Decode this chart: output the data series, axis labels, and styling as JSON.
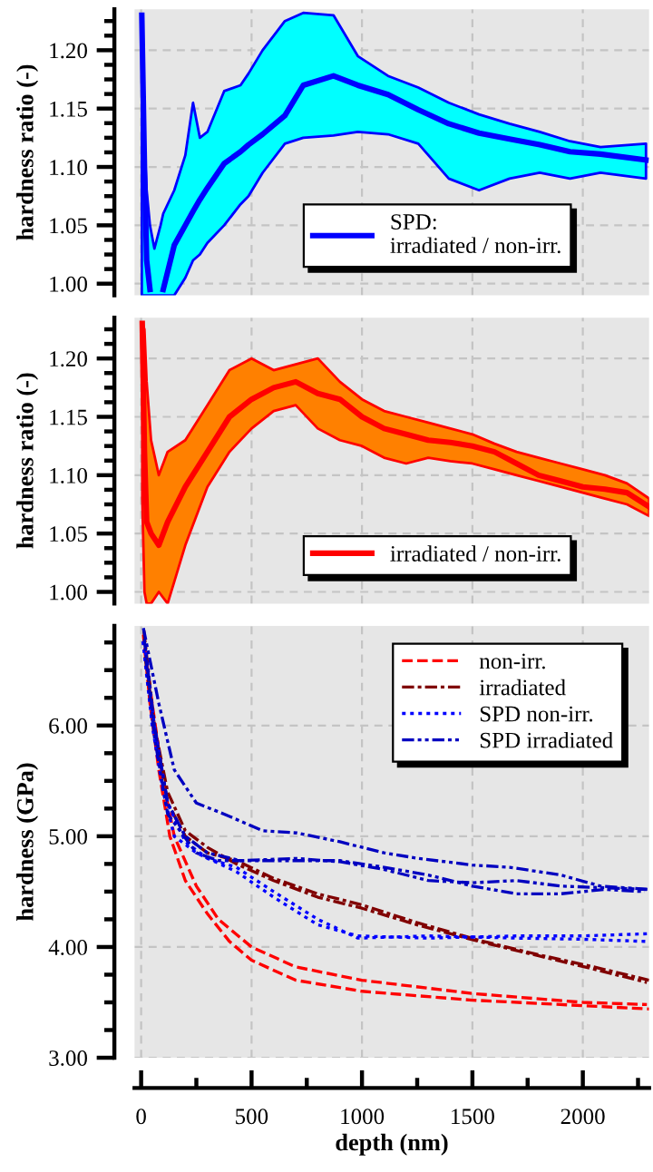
{
  "chart_data": [
    {
      "type": "line",
      "ylabel": "hardness ratio (-)",
      "xlim": [
        -30,
        2300
      ],
      "xticks": [
        0,
        500,
        1000,
        1500,
        2000
      ],
      "ylim": [
        0.99,
        1.235
      ],
      "yticks": [
        {
          "value": 1.0,
          "label": "1.00"
        },
        {
          "value": 1.05,
          "label": "1.05"
        },
        {
          "value": 1.1,
          "label": "1.10"
        },
        {
          "value": 1.15,
          "label": "1.15"
        },
        {
          "value": 1.2,
          "label": "1.20"
        }
      ],
      "tick_labels": "y",
      "grid": true,
      "legend": "bottom right",
      "series": [
        {
          "name": "SPD:\nirradiated / non-irr.",
          "color": "#0000ff",
          "x": [
            3,
            15,
            25,
            40,
            60,
            88,
            100,
            150,
            200,
            235,
            266,
            300,
            376,
            450,
            486,
            550,
            651,
            734,
            871,
            981,
            1118,
            1255,
            1393,
            1530,
            1668,
            1805,
            1942,
            2080,
            2286
          ],
          "values": [
            1.23,
            1.1,
            1.02,
            0.995,
            null,
            null,
            0.995,
            1.033,
            1.05,
            1.062,
            1.072,
            1.082,
            1.103,
            1.113,
            1.119,
            1.128,
            1.144,
            1.17,
            1.178,
            1.17,
            1.162,
            1.149,
            1.137,
            1.129,
            1.124,
            1.119,
            1.113,
            1.111,
            1.106
          ],
          "upper": [
            1.23,
            1.12,
            1.08,
            1.05,
            1.03,
            1.05,
            1.06,
            1.08,
            1.11,
            1.155,
            1.125,
            1.13,
            1.165,
            1.17,
            1.18,
            1.2,
            1.225,
            1.232,
            1.23,
            1.195,
            1.178,
            1.168,
            1.155,
            1.145,
            1.137,
            1.13,
            1.122,
            1.117,
            1.12
          ],
          "lower": [
            0.99,
            0.99,
            0.99,
            0.99,
            0.99,
            0.99,
            0.99,
            0.99,
            1.005,
            1.02,
            1.025,
            1.035,
            1.05,
            1.068,
            1.075,
            1.095,
            1.12,
            1.125,
            1.127,
            1.13,
            1.128,
            1.12,
            1.09,
            1.08,
            1.09,
            1.095,
            1.09,
            1.095,
            1.09
          ]
        }
      ]
    },
    {
      "type": "line",
      "ylabel": "hardness ratio (-)",
      "xlim": [
        -30,
        2300
      ],
      "xticks": [
        0,
        500,
        1000,
        1500,
        2000
      ],
      "ylim": [
        0.99,
        1.235
      ],
      "yticks": [
        {
          "value": 1.0,
          "label": "1.00"
        },
        {
          "value": 1.05,
          "label": "1.05"
        },
        {
          "value": 1.1,
          "label": "1.10"
        },
        {
          "value": 1.15,
          "label": "1.15"
        },
        {
          "value": 1.2,
          "label": "1.20"
        }
      ],
      "tick_labels": "y",
      "grid": true,
      "legend": "bottom right",
      "series": [
        {
          "name": "irradiated / non-irr.",
          "color": "#ff0000",
          "x": [
            5,
            15,
            25,
            45,
            80,
            120,
            200,
            300,
            400,
            500,
            600,
            700,
            800,
            900,
            1000,
            1100,
            1200,
            1300,
            1400,
            1500,
            1600,
            1700,
            1800,
            1900,
            2000,
            2100,
            2200,
            2300
          ],
          "values": [
            1.23,
            1.12,
            1.06,
            1.05,
            1.04,
            1.06,
            1.09,
            1.12,
            1.15,
            1.165,
            1.175,
            1.18,
            1.17,
            1.165,
            1.15,
            1.14,
            1.135,
            1.13,
            1.128,
            1.125,
            1.12,
            1.11,
            1.1,
            1.095,
            1.09,
            1.088,
            1.085,
            1.073
          ],
          "upper": [
            1.23,
            1.225,
            1.18,
            1.13,
            1.1,
            1.12,
            1.13,
            1.16,
            1.19,
            1.2,
            1.19,
            1.195,
            1.2,
            1.18,
            1.165,
            1.155,
            1.15,
            1.145,
            1.14,
            1.135,
            1.127,
            1.12,
            1.115,
            1.11,
            1.105,
            1.1,
            1.093,
            1.08
          ],
          "lower": [
            1.08,
            1.0,
            0.99,
            0.99,
            1.0,
            0.99,
            1.04,
            1.09,
            1.12,
            1.14,
            1.155,
            1.16,
            1.14,
            1.13,
            1.125,
            1.115,
            1.11,
            1.115,
            1.112,
            1.11,
            1.105,
            1.1,
            1.095,
            1.09,
            1.085,
            1.08,
            1.075,
            1.065
          ]
        }
      ]
    },
    {
      "type": "line",
      "ylabel": "hardness (GPa)",
      "xlabel": "depth (nm)",
      "xlim": [
        -30,
        2300
      ],
      "xticks": [
        0,
        500,
        1000,
        1500,
        2000
      ],
      "ylim": [
        3.0,
        6.9
      ],
      "yticks": [
        {
          "value": 3.0,
          "label": "3.00"
        },
        {
          "value": 4.0,
          "label": "4.00"
        },
        {
          "value": 5.0,
          "label": "5.00"
        },
        {
          "value": 6.0,
          "label": "6.00"
        }
      ],
      "grid": true,
      "legend": "top right",
      "series": [
        {
          "name": "non-irr.",
          "color": "#ff0000",
          "line_style": "dashed",
          "x": [
            10,
            40,
            80,
            130,
            200,
            300,
            400,
            500,
            700,
            1000,
            1500,
            2000,
            2300
          ],
          "values": [
            6.82,
            6.2,
            5.6,
            5.0,
            4.6,
            4.3,
            4.05,
            3.88,
            3.7,
            3.6,
            3.52,
            3.47,
            3.44
          ]
        },
        {
          "color": "#ff0000",
          "line_style": "dashed",
          "x": [
            16,
            50,
            100,
            150,
            250,
            350,
            500,
            700,
            1000,
            1500,
            2000,
            2290
          ],
          "values": [
            6.7,
            6.2,
            5.5,
            5.0,
            4.55,
            4.25,
            4.0,
            3.82,
            3.7,
            3.58,
            3.5,
            3.48
          ]
        },
        {
          "name": "irradiated",
          "color": "#800000",
          "line_style": "dashdot",
          "x": [
            12,
            60,
            120,
            200,
            300,
            431,
            600,
            800,
            1000,
            1250,
            1530,
            1800,
            2050,
            2300
          ],
          "values": [
            6.86,
            6.0,
            5.3,
            5.0,
            4.85,
            4.78,
            4.62,
            4.48,
            4.38,
            4.22,
            4.06,
            3.93,
            3.82,
            3.7
          ]
        },
        {
          "color": "#800000",
          "line_style": "dashdot",
          "x": [
            18,
            60,
            120,
            200,
            300,
            431,
            600,
            800,
            1000,
            1250,
            1530,
            1800,
            2050,
            2290
          ],
          "values": [
            6.62,
            6.0,
            5.4,
            5.05,
            4.9,
            4.75,
            4.6,
            4.45,
            4.35,
            4.2,
            4.05,
            3.92,
            3.8,
            3.68
          ]
        },
        {
          "name": "SPD non-irr.",
          "color": "#0000ff",
          "line_style": "dotted",
          "x": [
            8,
            50,
            100,
            150,
            250,
            431,
            600,
            800,
            981,
            1300,
            1700,
            2000,
            2300
          ],
          "values": [
            6.76,
            6.0,
            5.4,
            5.0,
            4.85,
            4.68,
            4.45,
            4.2,
            4.1,
            4.08,
            4.1,
            4.1,
            4.12
          ]
        },
        {
          "color": "#0000ff",
          "line_style": "dotted",
          "x": [
            20,
            60,
            120,
            200,
            300,
            431,
            600,
            800,
            981,
            1300,
            1700,
            2000,
            2290
          ],
          "values": [
            6.66,
            6.0,
            5.3,
            4.95,
            4.8,
            4.72,
            4.5,
            4.25,
            4.08,
            4.1,
            4.08,
            4.07,
            4.05
          ]
        },
        {
          "name": "SPD irradiated",
          "color": "#0000c0",
          "line_style": "dashdotdot",
          "x": [
            10,
            80,
            150,
            250,
            376,
            550,
            706,
            900,
            1100,
            1255,
            1500,
            1668,
            1900,
            2080,
            2300
          ],
          "values": [
            6.88,
            6.2,
            5.6,
            5.3,
            5.2,
            5.05,
            5.03,
            4.95,
            4.85,
            4.8,
            4.74,
            4.72,
            4.65,
            4.55,
            4.52
          ]
        },
        {
          "color": "#0000c0",
          "line_style": "dashdotdot",
          "x": [
            14,
            60,
            120,
            200,
            300,
            450,
            700,
            900,
            1100,
            1300,
            1500,
            1700,
            1900,
            2290
          ],
          "values": [
            6.78,
            6.0,
            5.3,
            5.0,
            4.85,
            4.78,
            4.8,
            4.77,
            4.7,
            4.6,
            4.58,
            4.6,
            4.55,
            4.52
          ]
        },
        {
          "color": "#0000c0",
          "line_style": "dashdotdot",
          "x": [
            22,
            60,
            120,
            250,
            350,
            500,
            700,
            900,
            1100,
            1300,
            1500,
            1700,
            1900,
            2100,
            2280
          ],
          "values": [
            6.6,
            5.9,
            5.2,
            4.85,
            4.78,
            4.78,
            4.78,
            4.78,
            4.72,
            4.65,
            4.55,
            4.48,
            4.48,
            4.52,
            4.5
          ]
        }
      ]
    }
  ]
}
